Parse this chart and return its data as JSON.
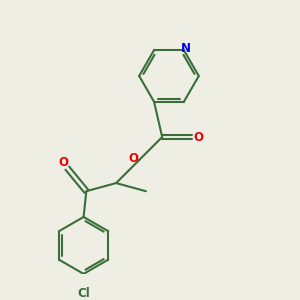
{
  "background_color": "#eeeee4",
  "bond_color": "#3a6e3a",
  "atom_colors": {
    "N": "#0000ee",
    "O": "#ee0000",
    "Cl": "#3a6e3a"
  },
  "figsize": [
    3.0,
    3.0
  ],
  "dpi": 100
}
